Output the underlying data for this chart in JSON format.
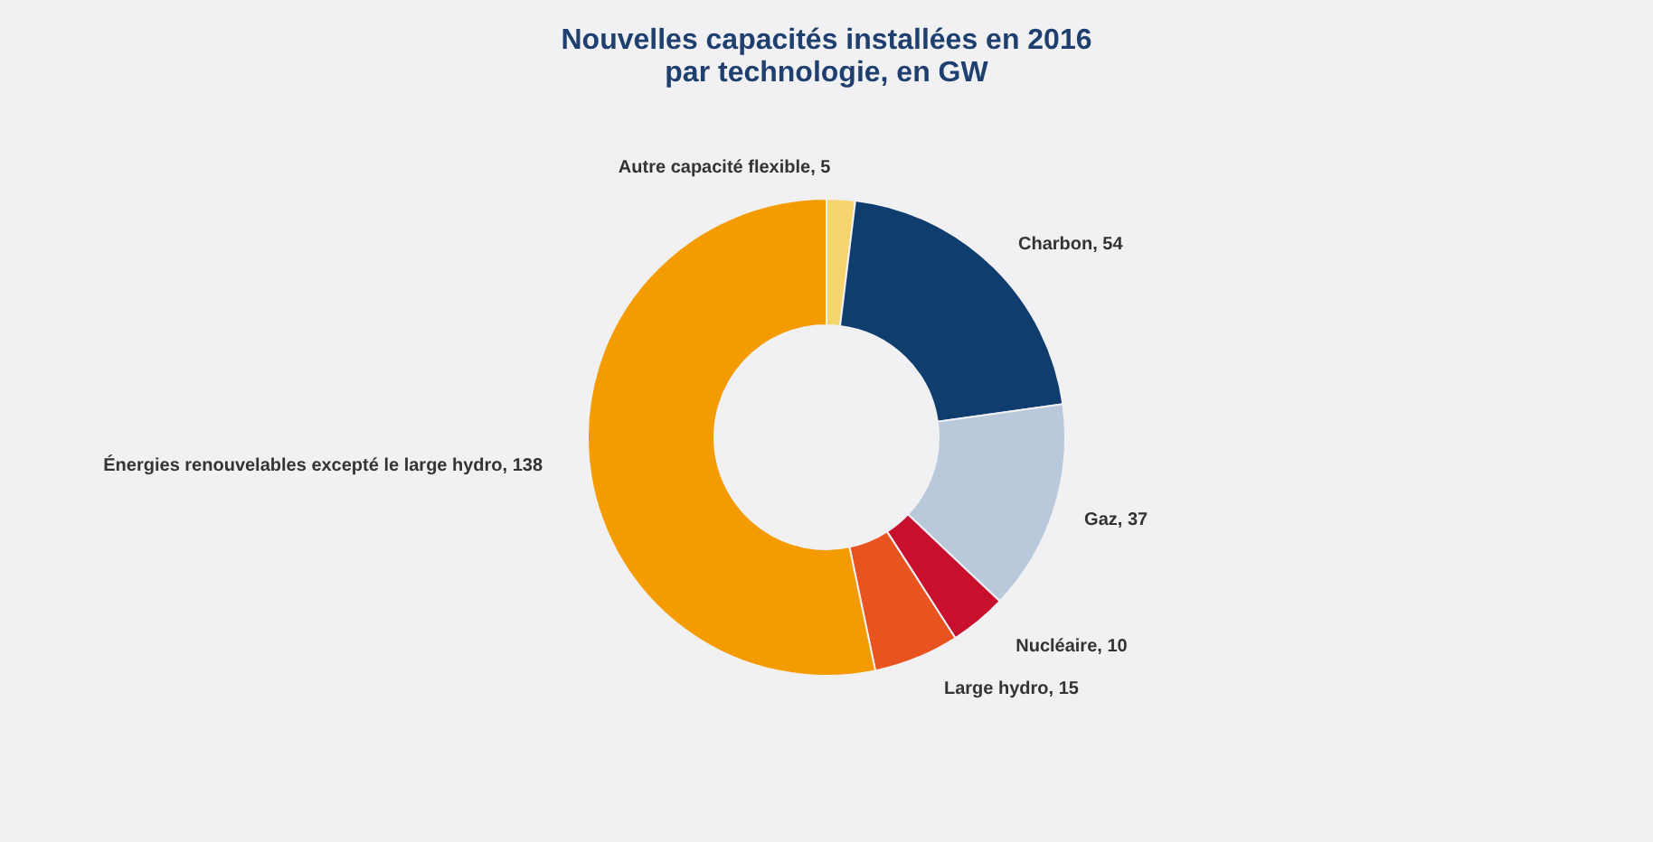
{
  "chart_data": {
    "type": "donut",
    "title": "Nouvelles capacités installées en 2016\npar technologie, en GW",
    "categories": [
      "Autre capacité flexible",
      "Charbon",
      "Gaz",
      "Nucléaire",
      "Large hydro",
      "Énergies renouvelables excepté le large hydro"
    ],
    "values": [
      5,
      54,
      37,
      10,
      15,
      138
    ],
    "colors": [
      "#f6d46e",
      "#0f3d6e",
      "#b9c9db",
      "#c8102e",
      "#e9531f",
      "#f49b00"
    ],
    "value_labels": [
      ", 5",
      ", 54",
      ", 37",
      ", 10",
      ", 15",
      ", 138"
    ],
    "legend": false
  }
}
